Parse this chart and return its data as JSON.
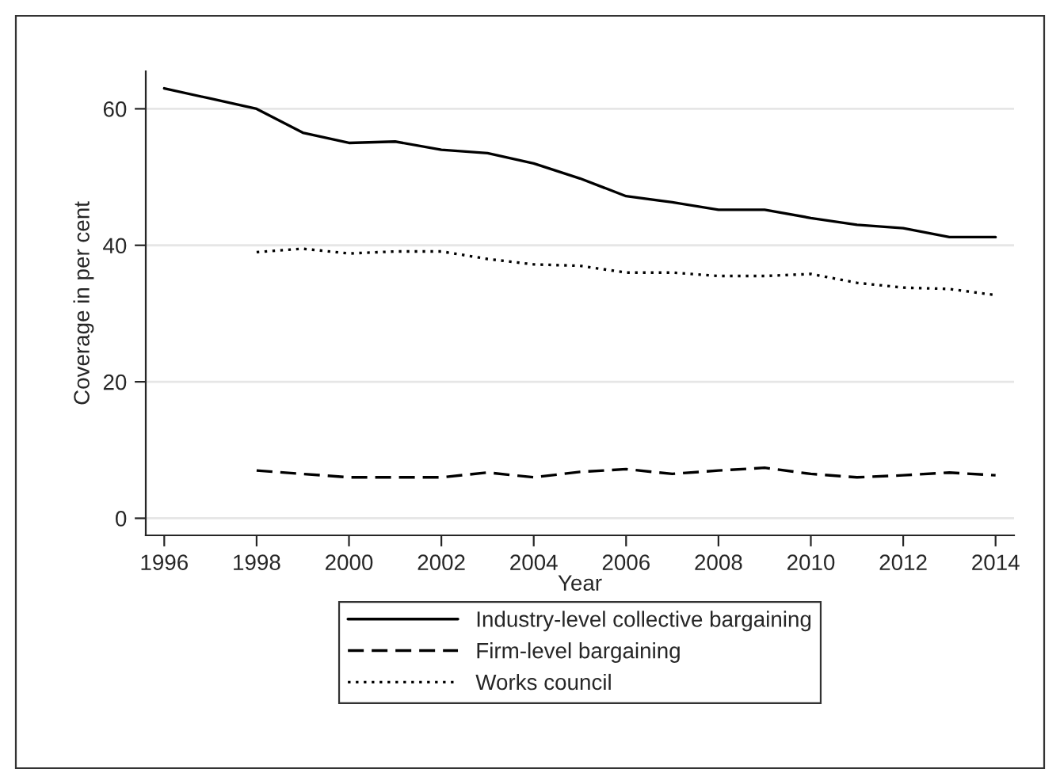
{
  "chart_data": {
    "type": "line",
    "xlabel": "Year",
    "ylabel": "Coverage in per cent",
    "x": [
      1996,
      1997,
      1998,
      1999,
      2000,
      2001,
      2002,
      2003,
      2004,
      2005,
      2006,
      2007,
      2008,
      2009,
      2010,
      2011,
      2012,
      2013,
      2014
    ],
    "series": [
      {
        "name": "Industry-level collective bargaining",
        "color": "#000000",
        "line_style": "solid",
        "values": [
          63,
          61.5,
          60,
          56.5,
          55,
          55.2,
          54,
          53.5,
          52,
          49.8,
          47.2,
          46.3,
          45.2,
          45.2,
          44,
          43,
          42.5,
          41.2,
          41.2
        ]
      },
      {
        "name": "Firm-level bargaining",
        "color": "#000000",
        "line_style": "dashed",
        "values": [
          null,
          null,
          7,
          6.5,
          6,
          6,
          6,
          6.7,
          6,
          6.8,
          7.2,
          6.5,
          7,
          7.4,
          6.5,
          6,
          6.3,
          6.7,
          6.3
        ]
      },
      {
        "name": "Works council",
        "color": "#000000",
        "line_style": "dotted",
        "values": [
          null,
          null,
          39,
          39.5,
          38.8,
          39.1,
          39.1,
          38,
          37.2,
          37,
          36,
          36,
          35.5,
          35.5,
          35.8,
          34.5,
          33.8,
          33.6,
          32.7
        ]
      }
    ],
    "xlim": [
      1995.6,
      2014.4
    ],
    "xticks": [
      1996,
      1998,
      2000,
      2002,
      2004,
      2006,
      2008,
      2010,
      2012,
      2014
    ],
    "ylim": [
      -2.5,
      65.5
    ],
    "yticks": [
      0,
      20,
      40,
      60
    ],
    "grid": "y",
    "legend": "bottom",
    "marker": "none"
  }
}
